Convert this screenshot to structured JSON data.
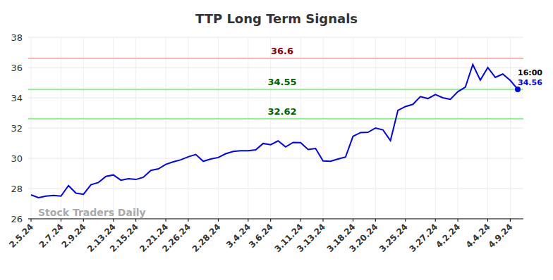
{
  "chart_data": {
    "type": "line",
    "title": "TTP Long Term Signals",
    "categories": [
      "2.5.24",
      null,
      null,
      null,
      "2.7.24",
      null,
      null,
      "2.9.24",
      null,
      null,
      null,
      "2.13.24",
      null,
      null,
      "2.15.24",
      null,
      null,
      null,
      "2.21.24",
      null,
      null,
      "2.26.24",
      null,
      null,
      null,
      "2.28.24",
      null,
      null,
      null,
      "3.4.24",
      null,
      null,
      "3.6.24",
      null,
      null,
      null,
      "3.11.24",
      null,
      null,
      "3.13.24",
      null,
      null,
      null,
      "3.18.24",
      null,
      null,
      "3.20.24",
      null,
      null,
      null,
      "3.25.24",
      null,
      null,
      null,
      "3.27.24",
      null,
      null,
      "4.2.24",
      null,
      null,
      null,
      "4.4.24",
      null,
      null,
      "4.9.24",
      null
    ],
    "values": [
      27.58,
      27.4,
      27.5,
      27.55,
      27.5,
      28.2,
      27.7,
      27.62,
      28.25,
      28.4,
      28.8,
      28.9,
      28.55,
      28.65,
      28.6,
      28.75,
      29.2,
      29.3,
      29.6,
      29.77,
      29.9,
      30.1,
      30.25,
      29.8,
      29.95,
      30.05,
      30.3,
      30.45,
      30.5,
      30.5,
      30.56,
      30.98,
      30.9,
      31.15,
      30.75,
      31.05,
      31.03,
      30.58,
      30.65,
      29.82,
      29.8,
      29.95,
      30.08,
      31.45,
      31.7,
      31.72,
      32.0,
      31.88,
      31.17,
      33.17,
      33.42,
      33.57,
      34.08,
      33.95,
      34.22,
      34.0,
      33.9,
      34.4,
      34.7,
      36.2,
      35.17,
      36.0,
      35.35,
      35.57,
      35.15,
      34.56
    ],
    "color": "#0000ff",
    "ylim": [
      26,
      38
    ],
    "yticks": [
      26,
      28,
      30,
      32,
      34,
      36,
      38
    ],
    "grid": true,
    "reference_lines": [
      {
        "value": 36.6,
        "color": "#ffb3b3"
      },
      {
        "value": 34.55,
        "color": "#90ee90"
      },
      {
        "value": 32.62,
        "color": "#90ee90"
      }
    ],
    "last_point": {
      "time": "16:00",
      "value": 34.56
    },
    "watermark": "Stock Traders Daily"
  }
}
